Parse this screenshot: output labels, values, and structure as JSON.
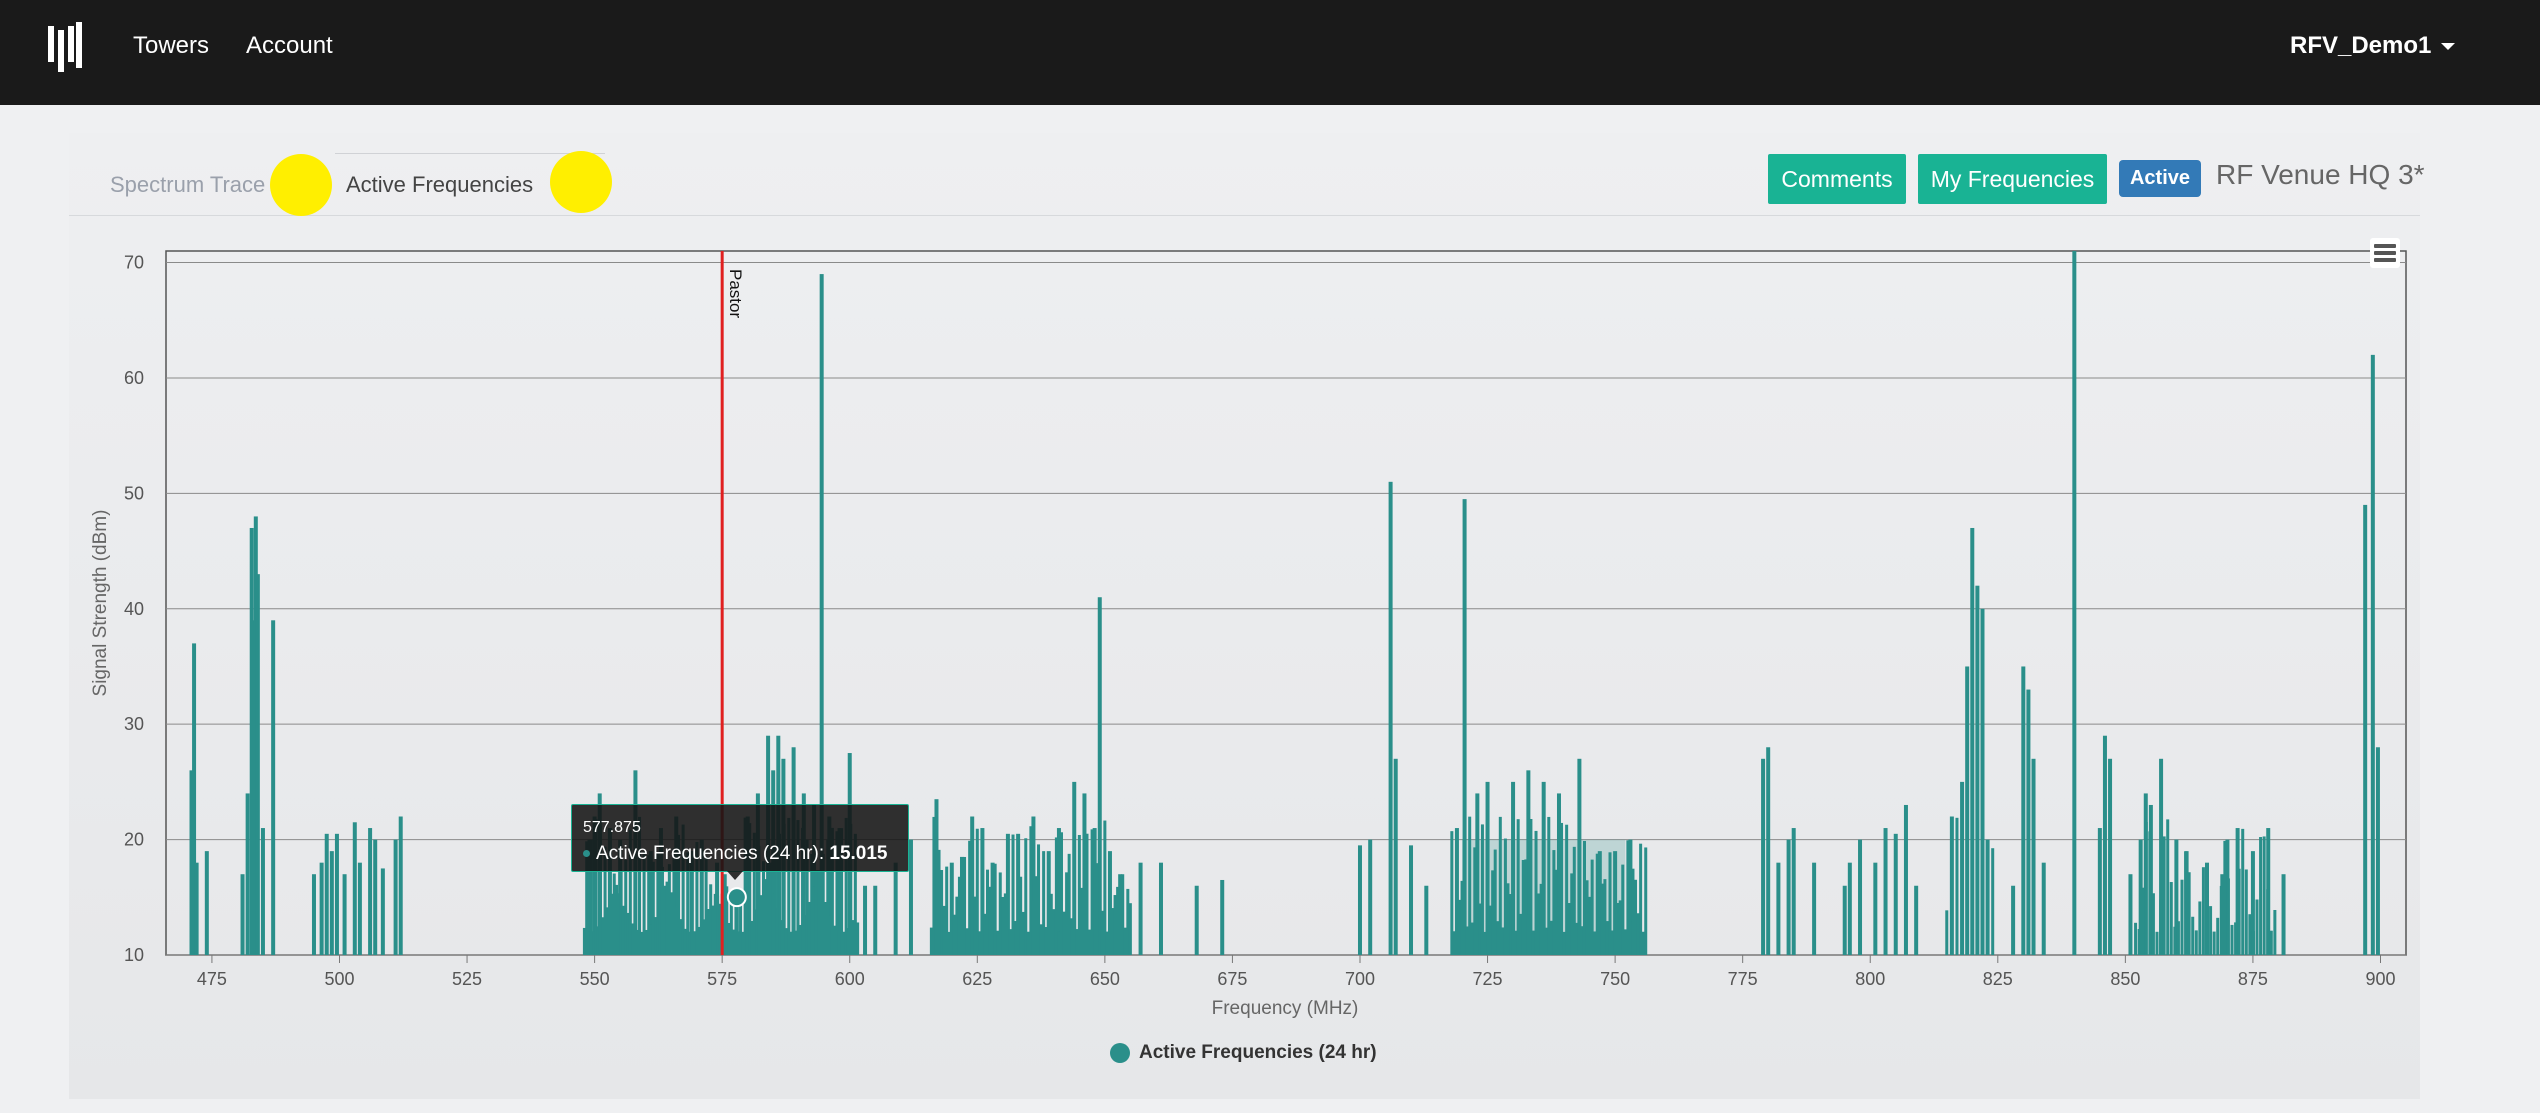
{
  "nav": {
    "towers_label": "Towers",
    "account_label": "Account",
    "user_label": "RFV_Demo1"
  },
  "tabs": {
    "spectrum_label": "Spectrum Trace",
    "active_label": "Active Frequencies"
  },
  "header": {
    "comments_label": "Comments",
    "my_frequencies_label": "My Frequencies",
    "status_badge": "Active",
    "venue_title": "RF Venue HQ 3*"
  },
  "colors": {
    "accent": "#19b394",
    "series": "#2a8f8a",
    "marker": "#e02020",
    "highlight": "#ffef00"
  },
  "tooltip": {
    "x_value": "577.875",
    "series_label": "Active Frequencies (24 hr): ",
    "y_value": "15.015"
  },
  "chart_data": {
    "type": "area",
    "title": "",
    "xlabel": "Frequency (MHz)",
    "ylabel": "Signal Strength (dBm)",
    "xlim": [
      466,
      905
    ],
    "ylim": [
      10,
      71
    ],
    "x_ticks": [
      475,
      500,
      525,
      550,
      575,
      600,
      625,
      650,
      675,
      700,
      725,
      750,
      775,
      800,
      825,
      850,
      875,
      900
    ],
    "y_ticks": [
      10,
      20,
      30,
      40,
      50,
      60,
      70
    ],
    "plot_line": {
      "x": 575,
      "label": "Pastor"
    },
    "legend": "Active Frequencies (24 hr)",
    "series": [
      {
        "name": "Active Frequencies (24 hr)",
        "spikes": [
          [
            471,
            26
          ],
          [
            471.5,
            37
          ],
          [
            472,
            18
          ],
          [
            474,
            19
          ],
          [
            481,
            17
          ],
          [
            482,
            24
          ],
          [
            482.8,
            47
          ],
          [
            483.2,
            39
          ],
          [
            483.6,
            48
          ],
          [
            484,
            43
          ],
          [
            485,
            21
          ],
          [
            487,
            39
          ],
          [
            495,
            17
          ],
          [
            496.5,
            18
          ],
          [
            497.5,
            20.5
          ],
          [
            498.5,
            19
          ],
          [
            499.5,
            20.5
          ],
          [
            501,
            17
          ],
          [
            503,
            21.5
          ],
          [
            504,
            18
          ],
          [
            506,
            21
          ],
          [
            507,
            20
          ],
          [
            508.5,
            17.5
          ],
          [
            511,
            20
          ],
          [
            512,
            22
          ],
          [
            549,
            20
          ],
          [
            550,
            22
          ],
          [
            551,
            24
          ],
          [
            553,
            21
          ],
          [
            555,
            20
          ],
          [
            558,
            26
          ],
          [
            561,
            19
          ],
          [
            563,
            21
          ],
          [
            566,
            22
          ],
          [
            569,
            19
          ],
          [
            571,
            20
          ],
          [
            574,
            18
          ],
          [
            575.5,
            17
          ],
          [
            577.875,
            15.015
          ],
          [
            580,
            22
          ],
          [
            582,
            24
          ],
          [
            584,
            29
          ],
          [
            585,
            26
          ],
          [
            586,
            29
          ],
          [
            587,
            27
          ],
          [
            589,
            28
          ],
          [
            591,
            24
          ],
          [
            593,
            23
          ],
          [
            594.5,
            69
          ],
          [
            596,
            22
          ],
          [
            598,
            21
          ],
          [
            600,
            27.5
          ],
          [
            603,
            16
          ],
          [
            605,
            16
          ],
          [
            609,
            18
          ],
          [
            612,
            20
          ],
          [
            617,
            23.5
          ],
          [
            620,
            18
          ],
          [
            622,
            18.5
          ],
          [
            624,
            22
          ],
          [
            626,
            21
          ],
          [
            628,
            18
          ],
          [
            631,
            20.5
          ],
          [
            633,
            20.5
          ],
          [
            636,
            22
          ],
          [
            639,
            19
          ],
          [
            641,
            21
          ],
          [
            644,
            25
          ],
          [
            646,
            24
          ],
          [
            648,
            21
          ],
          [
            649,
            41
          ],
          [
            651,
            19
          ],
          [
            653,
            17
          ],
          [
            657,
            18
          ],
          [
            661,
            18
          ],
          [
            668,
            16
          ],
          [
            673,
            16.5
          ],
          [
            700,
            19.5
          ],
          [
            702,
            20
          ],
          [
            706,
            51
          ],
          [
            707,
            27
          ],
          [
            710,
            19.5
          ],
          [
            713,
            16
          ],
          [
            719,
            21
          ],
          [
            720.5,
            49.5
          ],
          [
            723,
            24
          ],
          [
            725,
            25
          ],
          [
            730,
            25
          ],
          [
            733,
            26
          ],
          [
            736,
            25
          ],
          [
            739,
            24
          ],
          [
            743,
            27
          ],
          [
            747,
            19
          ],
          [
            750,
            19
          ],
          [
            753,
            20
          ],
          [
            779,
            27
          ],
          [
            780,
            28
          ],
          [
            782,
            18
          ],
          [
            784,
            20
          ],
          [
            785,
            21
          ],
          [
            789,
            18
          ],
          [
            795,
            16
          ],
          [
            796,
            18
          ],
          [
            798,
            20
          ],
          [
            801,
            18
          ],
          [
            803,
            21
          ],
          [
            805,
            20.5
          ],
          [
            807,
            23
          ],
          [
            809,
            16
          ],
          [
            816,
            22
          ],
          [
            818,
            25
          ],
          [
            819,
            35
          ],
          [
            820,
            47
          ],
          [
            821,
            42
          ],
          [
            822,
            40
          ],
          [
            823,
            20
          ],
          [
            828,
            16
          ],
          [
            830,
            35
          ],
          [
            831,
            33
          ],
          [
            832,
            27
          ],
          [
            834,
            18
          ],
          [
            840,
            71
          ],
          [
            845,
            21
          ],
          [
            846,
            29
          ],
          [
            847,
            27
          ],
          [
            851,
            17
          ],
          [
            853,
            20
          ],
          [
            854,
            24
          ],
          [
            855,
            23
          ],
          [
            857,
            27
          ],
          [
            860,
            20
          ],
          [
            862,
            19
          ],
          [
            866,
            18
          ],
          [
            869,
            17
          ],
          [
            870,
            20
          ],
          [
            872,
            21
          ],
          [
            875,
            19
          ],
          [
            878,
            21
          ],
          [
            881,
            17
          ],
          [
            897,
            49
          ],
          [
            898.5,
            62
          ],
          [
            899.5,
            28
          ]
        ]
      }
    ]
  }
}
